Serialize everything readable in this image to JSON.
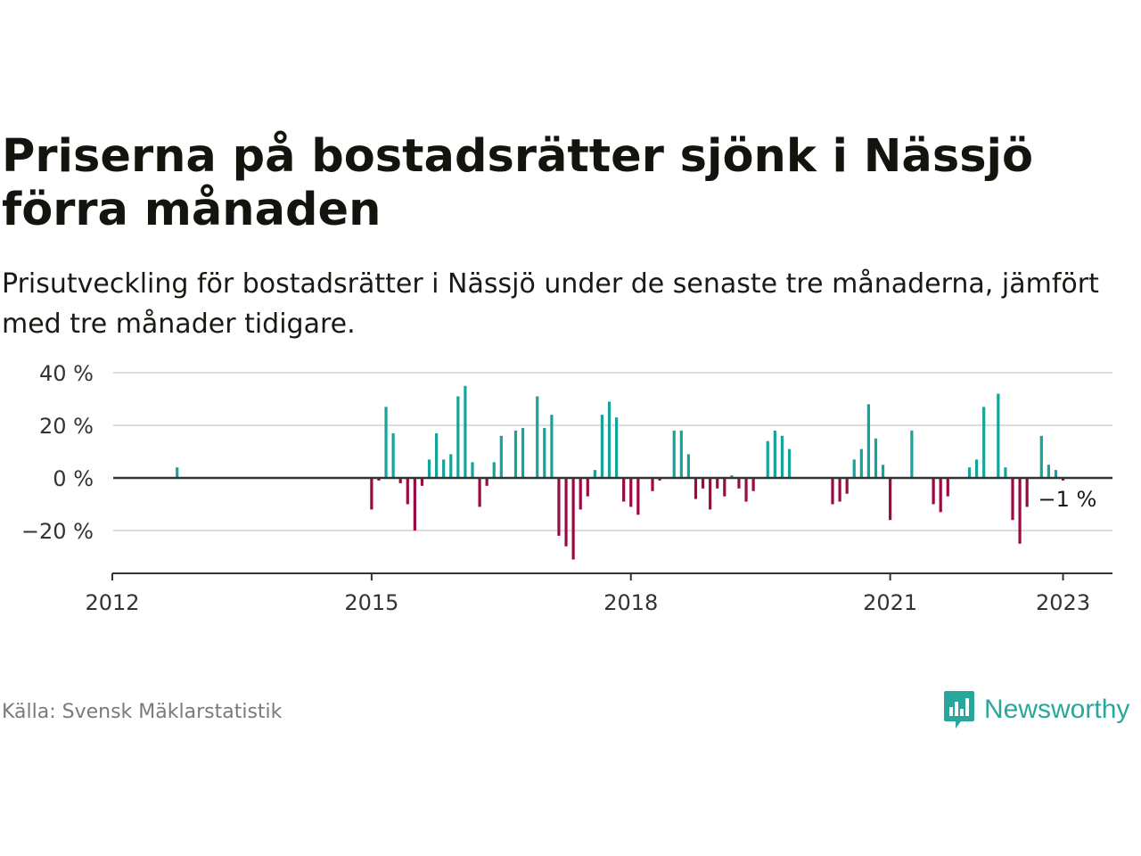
{
  "title": "Priserna på bostadsrätter sjönk i Nässjö förra månaden",
  "subtitle": "Prisutveckling för bostadsrätter i Nässjö under de senaste tre månaderna, jämfört med tre månader tidigare.",
  "source": "Källa: Svensk Mäklarstatistik",
  "brand": {
    "name": "Newsworthy",
    "icon": "bar-chart-speech-bubble-icon"
  },
  "colors": {
    "positive": "#16a39a",
    "negative": "#9b0a43",
    "grid": "#dddddd",
    "axis": "#333333",
    "brand": "#2aa79d"
  },
  "chart_data": {
    "type": "bar",
    "x_axis": {
      "min": "2012-01",
      "max": "2023-07",
      "tick_labels": [
        "2012",
        "2015",
        "2018",
        "2021",
        "2023"
      ]
    },
    "y_axis": {
      "min": -37,
      "max": 40,
      "tick_labels": [
        "40 %",
        "20 %",
        "0 %",
        "−20 %"
      ],
      "unit": "%"
    },
    "grid": true,
    "last_value_label": "−1 %",
    "series": [
      {
        "values": [
          {
            "x": "2012-10",
            "y": 4
          },
          {
            "x": "2015-01",
            "y": -12
          },
          {
            "x": "2015-02",
            "y": -1
          },
          {
            "x": "2015-03",
            "y": 27
          },
          {
            "x": "2015-04",
            "y": 17
          },
          {
            "x": "2015-05",
            "y": -2
          },
          {
            "x": "2015-06",
            "y": -10
          },
          {
            "x": "2015-07",
            "y": -20
          },
          {
            "x": "2015-08",
            "y": -3
          },
          {
            "x": "2015-09",
            "y": 7
          },
          {
            "x": "2015-10",
            "y": 17
          },
          {
            "x": "2015-11",
            "y": 7
          },
          {
            "x": "2015-12",
            "y": 9
          },
          {
            "x": "2016-01",
            "y": 31
          },
          {
            "x": "2016-02",
            "y": 35
          },
          {
            "x": "2016-03",
            "y": 6
          },
          {
            "x": "2016-04",
            "y": -11
          },
          {
            "x": "2016-05",
            "y": -3
          },
          {
            "x": "2016-06",
            "y": 6
          },
          {
            "x": "2016-07",
            "y": 16
          },
          {
            "x": "2016-09",
            "y": 18
          },
          {
            "x": "2016-10",
            "y": 19
          },
          {
            "x": "2016-12",
            "y": 31
          },
          {
            "x": "2017-01",
            "y": 19
          },
          {
            "x": "2017-02",
            "y": 24
          },
          {
            "x": "2017-03",
            "y": -22
          },
          {
            "x": "2017-04",
            "y": -26
          },
          {
            "x": "2017-05",
            "y": -31
          },
          {
            "x": "2017-06",
            "y": -12
          },
          {
            "x": "2017-07",
            "y": -7
          },
          {
            "x": "2017-08",
            "y": 3
          },
          {
            "x": "2017-09",
            "y": 24
          },
          {
            "x": "2017-10",
            "y": 29
          },
          {
            "x": "2017-11",
            "y": 23
          },
          {
            "x": "2017-12",
            "y": -9
          },
          {
            "x": "2018-01",
            "y": -11
          },
          {
            "x": "2018-02",
            "y": -14
          },
          {
            "x": "2018-04",
            "y": -5
          },
          {
            "x": "2018-05",
            "y": -1
          },
          {
            "x": "2018-07",
            "y": 18
          },
          {
            "x": "2018-08",
            "y": 18
          },
          {
            "x": "2018-09",
            "y": 9
          },
          {
            "x": "2018-10",
            "y": -8
          },
          {
            "x": "2018-11",
            "y": -4
          },
          {
            "x": "2018-12",
            "y": -12
          },
          {
            "x": "2019-01",
            "y": -4
          },
          {
            "x": "2019-02",
            "y": -7
          },
          {
            "x": "2019-03",
            "y": 1
          },
          {
            "x": "2019-04",
            "y": -4
          },
          {
            "x": "2019-05",
            "y": -9
          },
          {
            "x": "2019-06",
            "y": -5
          },
          {
            "x": "2019-08",
            "y": 14
          },
          {
            "x": "2019-09",
            "y": 18
          },
          {
            "x": "2019-10",
            "y": 16
          },
          {
            "x": "2019-11",
            "y": 11
          },
          {
            "x": "2020-05",
            "y": -10
          },
          {
            "x": "2020-06",
            "y": -9
          },
          {
            "x": "2020-07",
            "y": -6
          },
          {
            "x": "2020-08",
            "y": 7
          },
          {
            "x": "2020-09",
            "y": 11
          },
          {
            "x": "2020-10",
            "y": 28
          },
          {
            "x": "2020-11",
            "y": 15
          },
          {
            "x": "2020-12",
            "y": 5
          },
          {
            "x": "2021-01",
            "y": -16
          },
          {
            "x": "2021-04",
            "y": 18
          },
          {
            "x": "2021-07",
            "y": -10
          },
          {
            "x": "2021-08",
            "y": -13
          },
          {
            "x": "2021-09",
            "y": -7
          },
          {
            "x": "2021-12",
            "y": 4
          },
          {
            "x": "2022-01",
            "y": 7
          },
          {
            "x": "2022-02",
            "y": 27
          },
          {
            "x": "2022-04",
            "y": 32
          },
          {
            "x": "2022-05",
            "y": 4
          },
          {
            "x": "2022-06",
            "y": -16
          },
          {
            "x": "2022-07",
            "y": -25
          },
          {
            "x": "2022-08",
            "y": -11
          },
          {
            "x": "2022-10",
            "y": 16
          },
          {
            "x": "2022-11",
            "y": 5
          },
          {
            "x": "2022-12",
            "y": 3
          },
          {
            "x": "2023-01",
            "y": -1
          }
        ]
      }
    ]
  }
}
